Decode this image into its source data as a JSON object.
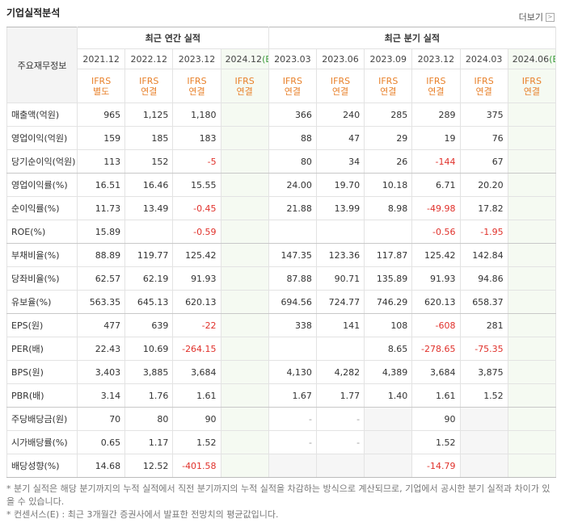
{
  "header": {
    "title": "기업실적분석",
    "more": "더보기"
  },
  "table": {
    "corner": "주요재무정보",
    "groups": [
      {
        "label": "최근 연간 실적",
        "span": 4
      },
      {
        "label": "최근 분기 실적",
        "span": 6
      }
    ],
    "columns": [
      {
        "date": "2021.12",
        "standard": "IFRS",
        "basis": "별도"
      },
      {
        "date": "2022.12",
        "standard": "IFRS",
        "basis": "연결"
      },
      {
        "date": "2023.12",
        "standard": "IFRS",
        "basis": "연결"
      },
      {
        "date": "2024.12",
        "estimate": "(E)",
        "standard": "IFRS",
        "basis": "연결"
      },
      {
        "date": "2023.03",
        "standard": "IFRS",
        "basis": "연결"
      },
      {
        "date": "2023.06",
        "standard": "IFRS",
        "basis": "연결"
      },
      {
        "date": "2023.09",
        "standard": "IFRS",
        "basis": "연결"
      },
      {
        "date": "2023.12",
        "standard": "IFRS",
        "basis": "연결"
      },
      {
        "date": "2024.03",
        "standard": "IFRS",
        "basis": "연결"
      },
      {
        "date": "2024.06",
        "estimate": "(E)",
        "standard": "IFRS",
        "basis": "연결"
      }
    ],
    "rows": [
      {
        "label": "매출액(억원)",
        "cells": [
          "965",
          "1,125",
          "1,180",
          null,
          "366",
          "240",
          "285",
          "289",
          "375",
          null
        ]
      },
      {
        "label": "영업이익(억원)",
        "cells": [
          "159",
          "185",
          "183",
          null,
          "88",
          "47",
          "29",
          "19",
          "76",
          null
        ]
      },
      {
        "label": "당기순이익(억원)",
        "cells": [
          "113",
          "152",
          "-5",
          null,
          "80",
          "34",
          "26",
          "-144",
          "67",
          null
        ]
      },
      {
        "label": "영업이익률(%)",
        "cells": [
          "16.51",
          "16.46",
          "15.55",
          null,
          "24.00",
          "19.70",
          "10.18",
          "6.71",
          "20.20",
          null
        ]
      },
      {
        "label": "순이익률(%)",
        "cells": [
          "11.73",
          "13.49",
          "-0.45",
          null,
          "21.88",
          "13.99",
          "8.98",
          "-49.98",
          "17.82",
          null
        ]
      },
      {
        "label": "ROE(%)",
        "cells": [
          "15.89",
          null,
          "-0.59",
          null,
          null,
          null,
          null,
          "-0.56",
          "-1.95",
          null
        ]
      },
      {
        "label": "부채비율(%)",
        "cells": [
          "88.89",
          "119.77",
          "125.42",
          null,
          "147.35",
          "123.36",
          "117.87",
          "125.42",
          "142.84",
          null
        ]
      },
      {
        "label": "당좌비율(%)",
        "cells": [
          "62.57",
          "62.19",
          "91.93",
          null,
          "87.88",
          "90.71",
          "135.89",
          "91.93",
          "94.86",
          null
        ]
      },
      {
        "label": "유보율(%)",
        "cells": [
          "563.35",
          "645.13",
          "620.13",
          null,
          "694.56",
          "724.77",
          "746.29",
          "620.13",
          "658.37",
          null
        ]
      },
      {
        "label": "EPS(원)",
        "cells": [
          "477",
          "639",
          "-22",
          null,
          "338",
          "141",
          "108",
          "-608",
          "281",
          null
        ]
      },
      {
        "label": "PER(배)",
        "cells": [
          "22.43",
          "10.69",
          "-264.15",
          null,
          null,
          null,
          "8.65",
          "-278.65",
          "-75.35",
          null
        ]
      },
      {
        "label": "BPS(원)",
        "cells": [
          "3,403",
          "3,885",
          "3,684",
          null,
          "4,130",
          "4,282",
          "4,389",
          "3,684",
          "3,875",
          null
        ]
      },
      {
        "label": "PBR(배)",
        "cells": [
          "3.14",
          "1.76",
          "1.61",
          null,
          "1.67",
          "1.77",
          "1.40",
          "1.61",
          "1.52",
          null
        ]
      },
      {
        "label": "주당배당금(원)",
        "cells": [
          "70",
          "80",
          "90",
          null,
          "-",
          "-",
          null,
          "90",
          null,
          null
        ]
      },
      {
        "label": "시가배당률(%)",
        "cells": [
          "0.65",
          "1.17",
          "1.52",
          null,
          "-",
          "-",
          null,
          "1.52",
          null,
          null
        ]
      },
      {
        "label": "배당성향(%)",
        "cells": [
          "14.68",
          "12.52",
          "-401.58",
          null,
          null,
          null,
          null,
          "-14.79",
          null,
          null
        ]
      }
    ]
  },
  "notes": [
    "* 분기 실적은 해당 분기까지의 누적 실적에서 직전 분기까지의 누적 실적을 차감하는 방식으로 계산되므로, 기업에서 공시한 분기 실적과 차이가 있을 수 있습니다.",
    "* 컨센서스(E) : 최근 3개월간 증권사에서 발표한 전망치의 평균값입니다."
  ]
}
